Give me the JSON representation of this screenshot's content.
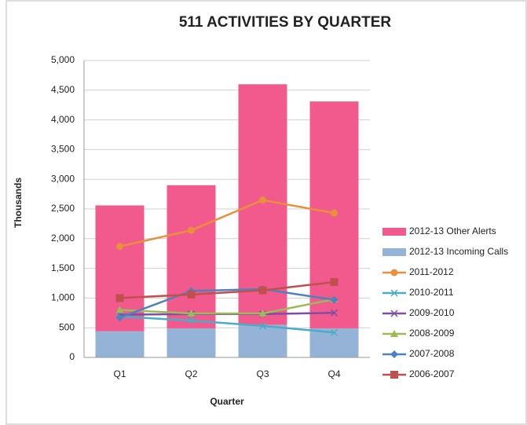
{
  "chart_data": {
    "type": "bar",
    "title": "511 ACTIVITIES BY QUARTER",
    "xlabel": "Quarter",
    "ylabel": "Thousands",
    "categories": [
      "Q1",
      "Q2",
      "Q3",
      "Q4"
    ],
    "ylim": [
      0,
      5000
    ],
    "yticks": [
      0,
      500,
      {
        "value": 1000,
        "label": "1,000"
      },
      {
        "value": 1500,
        "label": "1,500"
      },
      {
        "value": 2000,
        "label": "2,000"
      },
      {
        "value": 2500,
        "label": "2,500"
      },
      {
        "value": 3000,
        "label": "3,000"
      },
      {
        "value": 3500,
        "label": "3,500"
      },
      {
        "value": 4000,
        "label": "4,000"
      },
      {
        "value": 4500,
        "label": "4,500"
      },
      {
        "value": 5000,
        "label": "5,000"
      }
    ],
    "grid": true,
    "legend": "right",
    "series": [
      {
        "name": "2012-13 Other Alerts",
        "type": "bar",
        "color": "#f25a8e",
        "values": [
          2120,
          2410,
          4050,
          3820
        ]
      },
      {
        "name": "2012-13 Incoming Calls",
        "type": "bar",
        "color": "#95b3d7",
        "values": [
          440,
          490,
          550,
          490
        ]
      },
      {
        "name": "2011-2012",
        "type": "line",
        "marker": "circle",
        "color": "#e8903a",
        "values": [
          1870,
          2140,
          2650,
          2430
        ]
      },
      {
        "name": "2010-2011",
        "type": "line",
        "marker": "x",
        "color": "#4bacc6",
        "values": [
          690,
          620,
          530,
          420
        ]
      },
      {
        "name": "2009-2010",
        "type": "line",
        "marker": "x",
        "color": "#7e4ea3",
        "values": [
          720,
          730,
          730,
          750
        ]
      },
      {
        "name": "2008-2009",
        "type": "line",
        "marker": "triangle",
        "color": "#9bbb59",
        "values": [
          800,
          740,
          740,
          980
        ]
      },
      {
        "name": "2007-2008",
        "type": "line",
        "marker": "diamond",
        "color": "#4f81bd",
        "values": [
          670,
          1120,
          1150,
          970
        ]
      },
      {
        "name": "2006-2007",
        "type": "line",
        "marker": "square",
        "color": "#c0504d",
        "values": [
          1000,
          1060,
          1130,
          1270
        ]
      }
    ]
  }
}
